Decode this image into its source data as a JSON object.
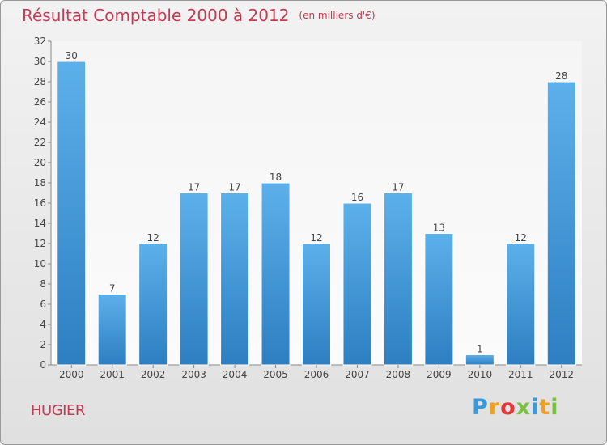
{
  "title": "Résultat Comptable 2000 à 2012",
  "unit": "(en milliers d'€)",
  "commune": "HUGIER",
  "logo": {
    "letters": [
      "P",
      "r",
      "o",
      "x",
      "i",
      "t",
      "i"
    ],
    "colors": [
      "#3a9ad9",
      "#f0a020",
      "#e23a3a",
      "#7bc043",
      "#3a9ad9",
      "#f0a020",
      "#7bc043"
    ]
  },
  "colors": {
    "bar": "#3d93d6",
    "bar_light": "#5cb0ea",
    "title": "#c43a52"
  },
  "chart_data": {
    "type": "bar",
    "title": "Résultat Comptable 2000 à 2012",
    "ylabel": "(en milliers d'€)",
    "xlabel": "",
    "categories": [
      "2000",
      "2001",
      "2002",
      "2003",
      "2004",
      "2005",
      "2006",
      "2007",
      "2008",
      "2009",
      "2010",
      "2011",
      "2012"
    ],
    "values": [
      30,
      7,
      12,
      17,
      17,
      18,
      12,
      16,
      17,
      13,
      1,
      12,
      28
    ],
    "ylim": [
      0,
      32
    ],
    "yticks": [
      0,
      2,
      4,
      6,
      8,
      10,
      12,
      14,
      16,
      18,
      20,
      22,
      24,
      26,
      28,
      30,
      32
    ],
    "grid": false,
    "data_labels": true
  }
}
